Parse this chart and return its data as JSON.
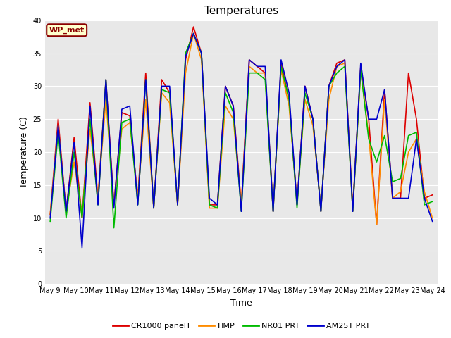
{
  "title": "Temperatures",
  "xlabel": "Time",
  "ylabel": "Temperature (C)",
  "ylim": [
    0,
    40
  ],
  "xlim_days": 15.5,
  "background_color": "#e8e8e8",
  "annotation_text": "WP_met",
  "annotation_color": "#8b0000",
  "annotation_bg": "#ffffcc",
  "x_labels": [
    "May 9",
    "May 10",
    "May 11",
    "May 12",
    "May 13",
    "May 14",
    "May 15",
    "May 16",
    "May 17",
    "May 18",
    "May 19",
    "May 20",
    "May 21",
    "May 22",
    "May 23",
    "May 24"
  ],
  "yticks": [
    0,
    5,
    10,
    15,
    20,
    25,
    30,
    35,
    40
  ],
  "series": {
    "CR1000 panelT": {
      "color": "#dd0000",
      "lw": 1.2,
      "values": [
        10.5,
        25.0,
        11.0,
        22.2,
        10.0,
        27.5,
        13.0,
        31.0,
        12.0,
        26.0,
        25.5,
        13.0,
        32.0,
        11.5,
        31.0,
        29.0,
        12.0,
        34.0,
        39.0,
        35.0,
        12.0,
        12.0,
        30.0,
        27.0,
        12.0,
        34.0,
        33.0,
        32.0,
        11.0,
        33.5,
        28.0,
        12.0,
        30.0,
        25.0,
        11.0,
        30.0,
        33.5,
        34.0,
        11.5,
        33.0,
        25.0,
        9.0,
        29.5,
        13.0,
        13.0,
        32.0,
        25.0,
        13.0,
        13.5
      ]
    },
    "HMP": {
      "color": "#ff8c00",
      "lw": 1.2,
      "values": [
        10.5,
        24.0,
        11.0,
        18.5,
        10.5,
        23.5,
        13.0,
        28.0,
        12.0,
        23.5,
        24.5,
        13.0,
        28.0,
        11.5,
        29.0,
        27.5,
        12.0,
        32.0,
        38.0,
        34.0,
        11.5,
        11.5,
        27.0,
        25.0,
        12.0,
        33.0,
        32.0,
        32.0,
        11.5,
        32.5,
        27.0,
        12.5,
        28.0,
        24.0,
        11.5,
        28.0,
        33.0,
        33.5,
        11.0,
        32.5,
        22.5,
        9.0,
        28.0,
        13.0,
        14.0,
        20.0,
        22.0,
        14.0,
        10.0
      ]
    },
    "NR01 PRT": {
      "color": "#00bb00",
      "lw": 1.2,
      "values": [
        9.5,
        23.0,
        10.0,
        20.0,
        10.0,
        25.0,
        12.0,
        31.0,
        8.5,
        24.5,
        25.0,
        12.0,
        31.0,
        11.5,
        29.5,
        29.0,
        12.0,
        35.0,
        38.0,
        35.0,
        12.0,
        11.5,
        29.0,
        26.0,
        11.0,
        32.0,
        32.0,
        31.0,
        11.0,
        33.0,
        28.0,
        11.5,
        29.0,
        25.0,
        11.0,
        30.0,
        32.0,
        33.0,
        11.0,
        32.5,
        22.0,
        18.5,
        22.5,
        15.5,
        16.0,
        22.5,
        23.0,
        12.0,
        12.5
      ]
    },
    "AM25T PRT": {
      "color": "#0000cc",
      "lw": 1.2,
      "values": [
        10.0,
        24.0,
        11.0,
        21.5,
        5.5,
        27.0,
        12.0,
        31.0,
        11.5,
        26.5,
        27.0,
        12.0,
        31.0,
        11.5,
        30.0,
        30.0,
        12.0,
        34.5,
        38.0,
        35.0,
        13.0,
        12.0,
        30.0,
        27.0,
        11.0,
        34.0,
        33.0,
        33.0,
        11.0,
        34.0,
        29.0,
        12.0,
        30.0,
        25.0,
        11.0,
        30.0,
        33.0,
        34.0,
        11.0,
        33.5,
        25.0,
        25.0,
        29.5,
        13.0,
        13.0,
        13.0,
        22.0,
        13.0,
        9.5
      ]
    }
  },
  "legend_labels": [
    "CR1000 panelT",
    "HMP",
    "NR01 PRT",
    "AM25T PRT"
  ]
}
